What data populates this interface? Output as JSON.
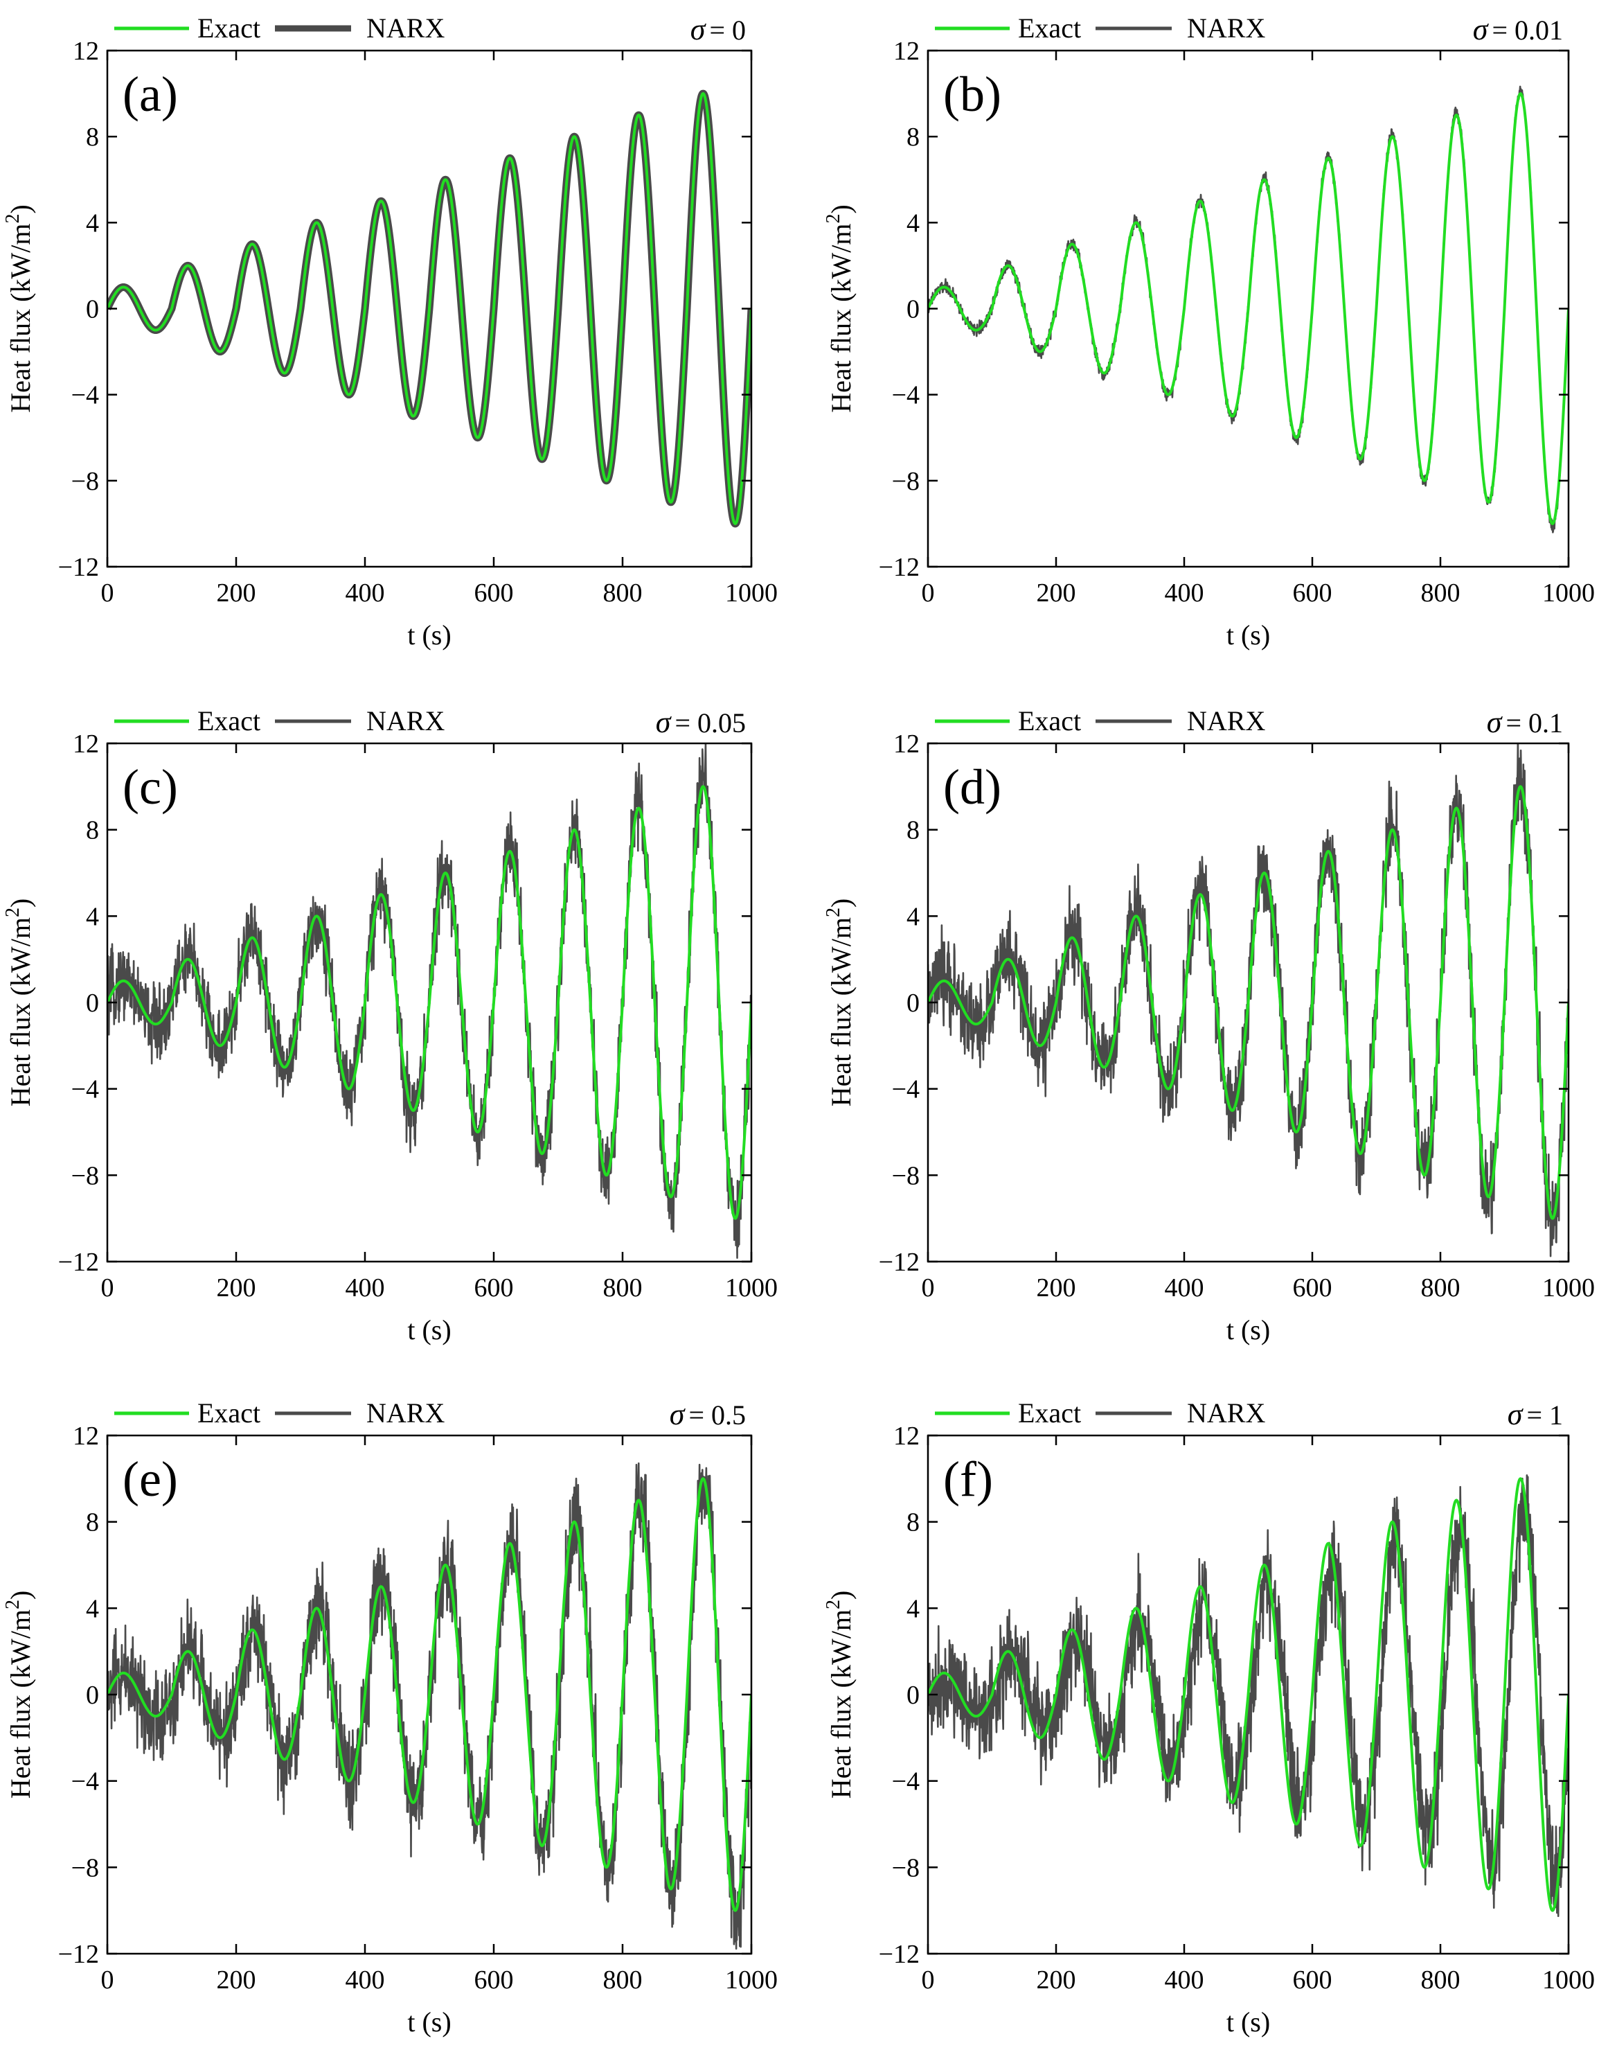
{
  "figure": {
    "xlabel": "t (s)",
    "ylabel": "Heat flux (kW/m",
    "ylabel_sup": "2",
    "ylabel_end": ")",
    "colors": {
      "exact": "#22dd22",
      "narx": "#4a4a4a",
      "axis": "#000000"
    }
  },
  "chart_data": [
    {
      "type": "line",
      "panel": "(a)",
      "sigma_symbol": "σ",
      "sigma_value": "= 0",
      "xlim": [
        0,
        1000
      ],
      "ylim": [
        -12,
        12
      ],
      "xticks": [
        "0",
        "200",
        "400",
        "600",
        "800",
        "1000"
      ],
      "yticks": [
        "−12",
        "−8",
        "−4",
        "0",
        "4",
        "8",
        "12"
      ],
      "legend": [
        "Exact",
        "NARX"
      ],
      "series": [
        {
          "name": "Exact",
          "function": "q(t) = (floor(t/100)+1) * sin(2*pi*t/100)",
          "x_range": [
            0,
            1000
          ]
        },
        {
          "name": "NARX",
          "noise_std": 0,
          "lag": 0,
          "amplitude_scale": 1
        }
      ]
    },
    {
      "type": "line",
      "panel": "(b)",
      "sigma_symbol": "σ",
      "sigma_value": "= 0.01",
      "xlim": [
        0,
        1000
      ],
      "ylim": [
        -12,
        12
      ],
      "xticks": [
        "0",
        "200",
        "400",
        "600",
        "800",
        "1000"
      ],
      "yticks": [
        "−12",
        "−8",
        "−4",
        "0",
        "4",
        "8",
        "12"
      ],
      "legend": [
        "Exact",
        "NARX"
      ],
      "series": [
        {
          "name": "Exact",
          "function": "q(t) = (floor(t/100)+1) * sin(2*pi*t/100)",
          "x_range": [
            0,
            1000
          ]
        },
        {
          "name": "NARX",
          "noise_std": 0.15,
          "lag": 0,
          "amplitude_scale": 1.01
        }
      ]
    },
    {
      "type": "line",
      "panel": "(c)",
      "sigma_symbol": "σ",
      "sigma_value": "= 0.05",
      "xlim": [
        0,
        1000
      ],
      "ylim": [
        -12,
        12
      ],
      "xticks": [
        "0",
        "200",
        "400",
        "600",
        "800",
        "1000"
      ],
      "yticks": [
        "−12",
        "−8",
        "−4",
        "0",
        "4",
        "8",
        "12"
      ],
      "legend": [
        "Exact",
        "NARX"
      ],
      "series": [
        {
          "name": "Exact",
          "function": "q(t) = (floor(t/100)+1) * sin(2*pi*t/100)",
          "x_range": [
            0,
            1000
          ]
        },
        {
          "name": "NARX",
          "noise_std": 0.85,
          "lag": 0,
          "amplitude_scale": 1.02
        }
      ]
    },
    {
      "type": "line",
      "panel": "(d)",
      "sigma_symbol": "σ",
      "sigma_value": "= 0.1",
      "xlim": [
        0,
        1000
      ],
      "ylim": [
        -12,
        12
      ],
      "xticks": [
        "0",
        "200",
        "400",
        "600",
        "800",
        "1000"
      ],
      "yticks": [
        "−12",
        "−8",
        "−4",
        "0",
        "4",
        "8",
        "12"
      ],
      "legend": [
        "Exact",
        "NARX"
      ],
      "series": [
        {
          "name": "Exact",
          "function": "q(t) = (floor(t/100)+1) * sin(2*pi*t/100)",
          "x_range": [
            0,
            1000
          ]
        },
        {
          "name": "NARX",
          "noise_std": 0.95,
          "lag": 0,
          "amplitude_scale": 1.02
        }
      ]
    },
    {
      "type": "line",
      "panel": "(e)",
      "sigma_symbol": "σ",
      "sigma_value": "= 0.5",
      "xlim": [
        0,
        1000
      ],
      "ylim": [
        -12,
        12
      ],
      "xticks": [
        "0",
        "200",
        "400",
        "600",
        "800",
        "1000"
      ],
      "yticks": [
        "−12",
        "−8",
        "−4",
        "0",
        "4",
        "8",
        "12"
      ],
      "legend": [
        "Exact",
        "NARX"
      ],
      "series": [
        {
          "name": "Exact",
          "function": "q(t) = (floor(t/100)+1) * sin(2*pi*t/100)",
          "x_range": [
            0,
            1000
          ]
        },
        {
          "name": "NARX",
          "noise_std": 1.05,
          "lag": 2,
          "amplitude_scale": 1.0
        }
      ]
    },
    {
      "type": "line",
      "panel": "(f)",
      "sigma_symbol": "σ",
      "sigma_value": "= 1",
      "xlim": [
        0,
        1000
      ],
      "ylim": [
        -12,
        12
      ],
      "xticks": [
        "0",
        "200",
        "400",
        "600",
        "800",
        "1000"
      ],
      "yticks": [
        "−12",
        "−8",
        "−4",
        "0",
        "4",
        "8",
        "12"
      ],
      "legend": [
        "Exact",
        "NARX"
      ],
      "series": [
        {
          "name": "Exact",
          "function": "q(t) = (floor(t/100)+1) * sin(2*pi*t/100)",
          "x_range": [
            0,
            1000
          ]
        },
        {
          "name": "NARX",
          "noise_std": 1.1,
          "lag": 6,
          "amplitude_scale": 0.85
        }
      ]
    }
  ]
}
